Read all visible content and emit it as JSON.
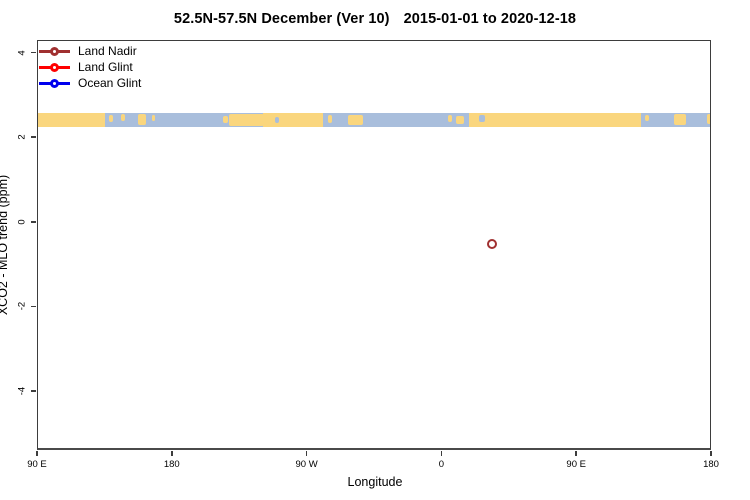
{
  "title": {
    "range_part": "52.5N-57.5N December (Ver 10)",
    "date_part": "2015-01-01 to 2020-12-18"
  },
  "axes": {
    "x": {
      "label": "Longitude",
      "domain_deg": [
        90,
        540
      ],
      "ticks": [
        {
          "deg": 90,
          "label": "90 E"
        },
        {
          "deg": 180,
          "label": "180"
        },
        {
          "deg": 270,
          "label": "90 W"
        },
        {
          "deg": 360,
          "label": "0"
        },
        {
          "deg": 450,
          "label": "90 E"
        },
        {
          "deg": 540,
          "label": "180"
        }
      ]
    },
    "y": {
      "label": "XCO2 - MLO trend (ppm)",
      "domain": [
        -5.4,
        4.3
      ],
      "ticks": [
        {
          "value": 4,
          "label": "4"
        },
        {
          "value": 2,
          "label": "2"
        },
        {
          "value": 0,
          "label": "0"
        },
        {
          "value": -2,
          "label": "-2"
        },
        {
          "value": -4,
          "label": "-4"
        }
      ]
    }
  },
  "legend": {
    "items": [
      {
        "label": "Land Nadir",
        "color": "#A03030"
      },
      {
        "label": "Land Glint",
        "color": "#FF0000"
      },
      {
        "label": "Ocean Glint",
        "color": "#0000EE"
      }
    ]
  },
  "chart_data": {
    "type": "scatter",
    "title": "52.5N-57.5N December (Ver 10)   2015-01-01 to 2020-12-18",
    "xlabel": "Longitude",
    "ylabel": "XCO2 - MLO trend (ppm)",
    "x_axis_note": "longitude axis wraps: 90E -> 180 -> 90W -> 0 -> 90E -> 180",
    "xlim_axis_deg": [
      90,
      540
    ],
    "ylim": [
      -5.4,
      4.3
    ],
    "grid": false,
    "legend_position": "top-left",
    "series": [
      {
        "name": "Land Nadir",
        "color": "#A03030",
        "points": [
          {
            "longitude": "33E",
            "axis_deg": 393,
            "value_ppm": -0.5
          }
        ]
      },
      {
        "name": "Land Glint",
        "color": "#FF0000",
        "points": []
      },
      {
        "name": "Ocean Glint",
        "color": "#0000EE",
        "points": []
      }
    ],
    "map_strip": {
      "description": "land/ocean map band for latitude 52.5N-57.5N",
      "value_top_ppm": 2.6,
      "value_bottom_ppm": 2.27,
      "ocean_color": "#A9BEDC",
      "land_color": "#FAD67E",
      "land_segments_pct": [
        {
          "from": 0,
          "to": 10.0,
          "h": 1.0,
          "dy": 0.0
        },
        {
          "from": 10.6,
          "to": 11.2,
          "h": 0.55,
          "dy": 0.2
        },
        {
          "from": 12.3,
          "to": 12.9,
          "h": 0.5,
          "dy": 0.1
        },
        {
          "from": 14.8,
          "to": 16.0,
          "h": 0.8,
          "dy": 0.1
        },
        {
          "from": 16.9,
          "to": 17.4,
          "h": 0.4,
          "dy": 0.3
        },
        {
          "from": 27.5,
          "to": 28.2,
          "h": 0.5,
          "dy": 0.4
        },
        {
          "from": 28.4,
          "to": 33.5,
          "h": 0.85,
          "dy": 0.15
        },
        {
          "from": 33.4,
          "to": 42.3,
          "h": 1.0,
          "dy": 0.0
        },
        {
          "from": 43.0,
          "to": 43.6,
          "h": 0.6,
          "dy": 0.2
        },
        {
          "from": 46.0,
          "to": 48.2,
          "h": 0.7,
          "dy": 0.25
        },
        {
          "from": 60.9,
          "to": 61.4,
          "h": 0.45,
          "dy": 0.3
        },
        {
          "from": 62.0,
          "to": 63.2,
          "h": 0.6,
          "dy": 0.35
        },
        {
          "from": 64.0,
          "to": 89.5,
          "h": 1.0,
          "dy": 0.0
        },
        {
          "from": 90.0,
          "to": 90.7,
          "h": 0.5,
          "dy": 0.2
        },
        {
          "from": 94.4,
          "to": 96.1,
          "h": 0.8,
          "dy": 0.1
        },
        {
          "from": 99.2,
          "to": 100,
          "h": 0.7,
          "dy": 0.15
        }
      ],
      "ocean_specks_pct": [
        {
          "from": 42.4,
          "to": 43.0,
          "h": 0.6,
          "dy": 0.2
        },
        {
          "from": 65.4,
          "to": 66.3,
          "h": 0.5,
          "dy": 0.3
        },
        {
          "from": 35.2,
          "to": 35.8,
          "h": 0.4,
          "dy": 0.5
        }
      ]
    }
  }
}
